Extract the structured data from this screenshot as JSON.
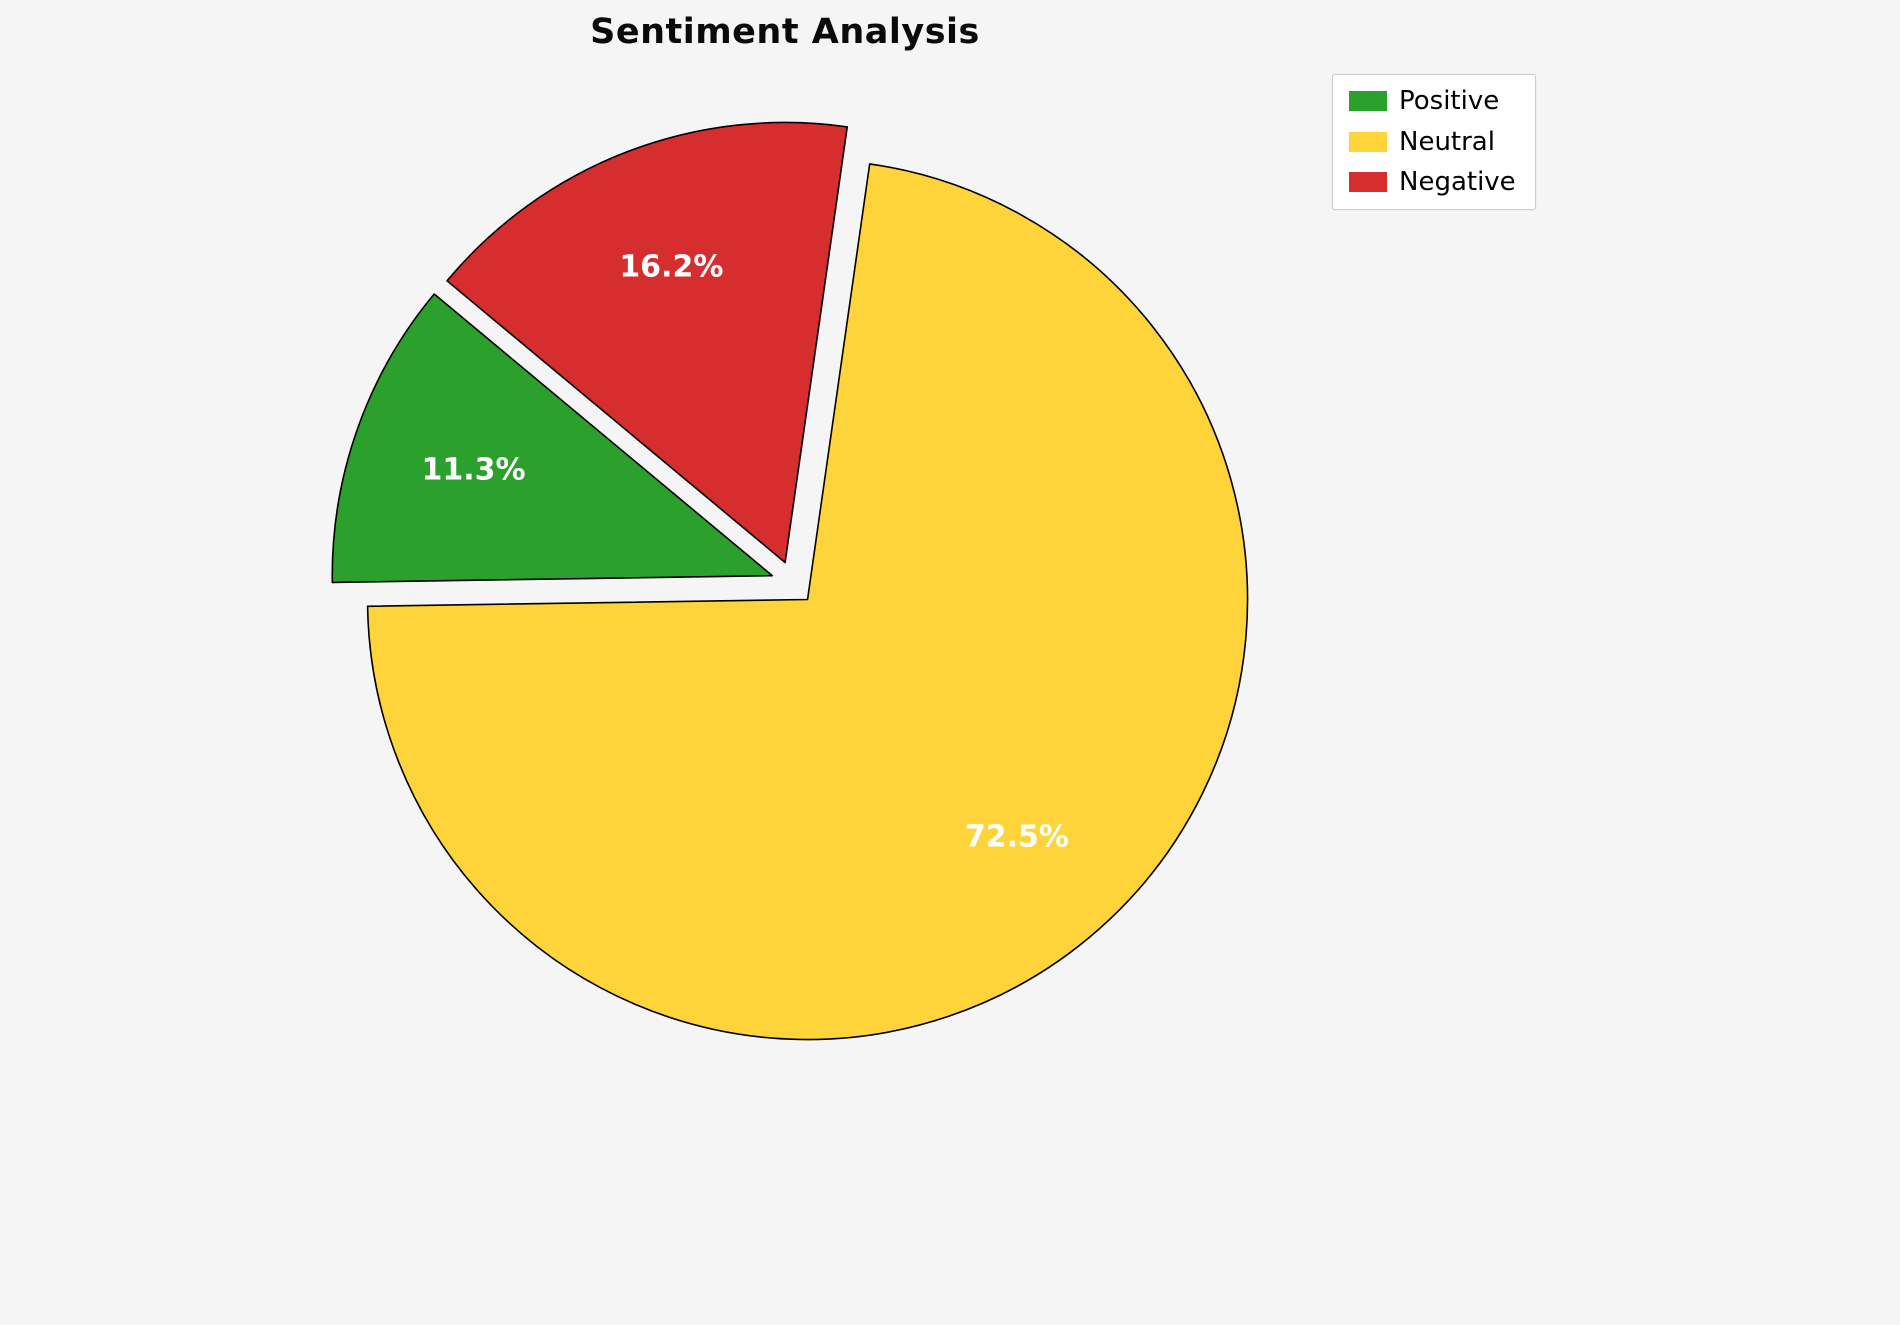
{
  "chart_data": {
    "type": "pie",
    "title": "Sentiment Analysis",
    "slices": [
      {
        "label": "Positive",
        "value": 11.3,
        "pct_label": "11.3%",
        "color": "#2ca02c"
      },
      {
        "label": "Neutral",
        "value": 72.5,
        "pct_label": "72.5%",
        "color": "#ffd43a"
      },
      {
        "label": "Negative",
        "value": 16.2,
        "pct_label": "16.2%",
        "color": "#d62e2e"
      }
    ],
    "start_angle": 140.2,
    "counterclockwise": true,
    "explode": 0.05,
    "edge_color": "#000000",
    "label_color": "#ffffff",
    "background": "#f5f5f5",
    "legend": {
      "position": "upper right",
      "entries": [
        "Positive",
        "Neutral",
        "Negative"
      ]
    }
  }
}
